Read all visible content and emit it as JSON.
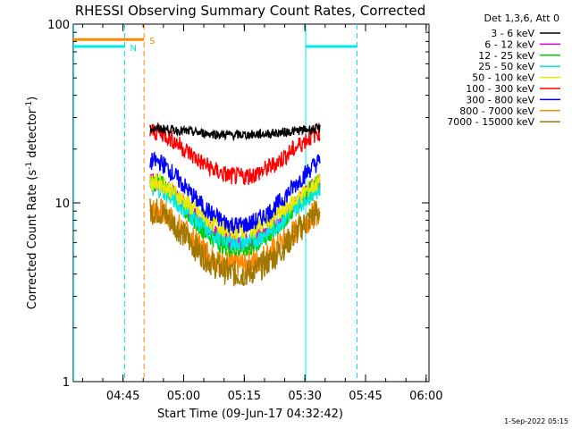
{
  "chart_data": {
    "type": "line",
    "title": "RHESSI Observing Summary Count Rates, Corrected",
    "xlabel": "Start Time (09-Jun-17 04:32:42)",
    "ylabel_main": "Corrected Count Rate (s",
    "ylabel_sup1": "-1",
    "ylabel_mid": " detector",
    "ylabel_sup2": "-1",
    "ylabel_end": ")",
    "yscale": "log",
    "ylim": [
      1,
      100
    ],
    "xlim_minutes": [
      0,
      88
    ],
    "yticks": [
      {
        "v": 1,
        "label": "1"
      },
      {
        "v": 10,
        "label": "10"
      },
      {
        "v": 100,
        "label": "100"
      }
    ],
    "xticks": [
      {
        "m": 12.3,
        "label": "04:45"
      },
      {
        "m": 27.3,
        "label": "05:00"
      },
      {
        "m": 42.3,
        "label": "05:15"
      },
      {
        "m": 57.3,
        "label": "05:30"
      },
      {
        "m": 72.3,
        "label": "05:45"
      },
      {
        "m": 87.3,
        "label": "06:00"
      }
    ],
    "legend_header": "Det 1,3,6, Att 0",
    "series": [
      {
        "name": "3 - 6 keV",
        "color": "#000000",
        "plateau": 26,
        "dip": 24
      },
      {
        "name": "6 - 12 keV",
        "color": "#e000e0",
        "plateau": 13,
        "dip": 6
      },
      {
        "name": "12 - 25 keV",
        "color": "#00d000",
        "plateau": 13,
        "dip": 5.5
      },
      {
        "name": "25 - 50 keV",
        "color": "#00e8e8",
        "plateau": 12,
        "dip": 6
      },
      {
        "name": "50 - 100 keV",
        "color": "#e8e800",
        "plateau": 13,
        "dip": 7
      },
      {
        "name": "100 - 300 keV",
        "color": "#ff0000",
        "plateau": 25,
        "dip": 14
      },
      {
        "name": "300 - 800 keV",
        "color": "#0000ff",
        "plateau": 17,
        "dip": 7.5
      },
      {
        "name": "800 - 7000 keV",
        "color": "#ff8800",
        "plateau": 9,
        "dip": 4.5
      },
      {
        "name": "7000 - 15000 keV",
        "color": "#a07800",
        "plateau": 9,
        "dip": 4
      }
    ],
    "data_interval_minutes": [
      19,
      61
    ],
    "flag_bars": [
      {
        "label": "S",
        "color": "#ff8800",
        "start": 0,
        "end": 17.5,
        "y": 82
      },
      {
        "label": "N",
        "color": "#00e8e8",
        "start": 0,
        "end": 12.7,
        "y": 75
      },
      {
        "label": "",
        "color": "#00e8e8",
        "start": 57.5,
        "end": 70.2,
        "y": 75
      }
    ],
    "vlines": [
      {
        "m": 12.7,
        "color": "#00e8e8",
        "dashed": true
      },
      {
        "m": 17.5,
        "color": "#ff8800",
        "dashed": true
      },
      {
        "m": 57.5,
        "color": "#00e8e8",
        "dashed": false
      },
      {
        "m": 70.2,
        "color": "#00e8e8",
        "dashed": true
      }
    ],
    "footer_stamp": "1-Sep-2022 05:15"
  }
}
